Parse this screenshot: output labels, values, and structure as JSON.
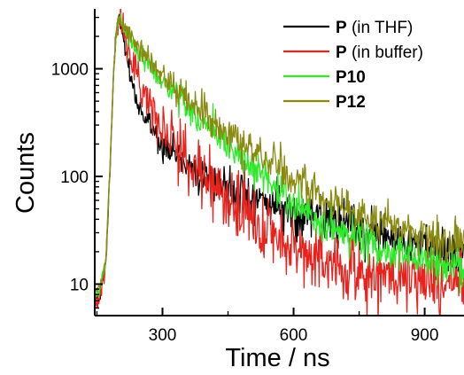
{
  "chart_data": {
    "type": "line",
    "xlabel": "Time / ns",
    "ylabel": "Counts",
    "xlim": [
      145,
      990
    ],
    "ylim": [
      5.1,
      3600
    ],
    "yscale": "log",
    "grid": false,
    "legend_position": "top-right",
    "x_ticks": [
      {
        "value": 300,
        "label": "300"
      },
      {
        "value": 600,
        "label": "600"
      },
      {
        "value": 900,
        "label": "900"
      }
    ],
    "y_ticks": [
      {
        "value": 10,
        "label": "10"
      },
      {
        "value": 100,
        "label": "100"
      },
      {
        "value": 1000,
        "label": "1000"
      }
    ],
    "series": [
      {
        "name_bold": "P",
        "name_rest": " (in THF)",
        "color": "#000000",
        "x": [
          155,
          170,
          180,
          188,
          195,
          200,
          205,
          212,
          220,
          230,
          240,
          250,
          260,
          275,
          290,
          310,
          330,
          350,
          375,
          400,
          425,
          450,
          475,
          500,
          525,
          550,
          575,
          600,
          625,
          650,
          675,
          700,
          725,
          750,
          775,
          800,
          825,
          850,
          875,
          900,
          925,
          950,
          975,
          990
        ],
        "y": [
          7,
          15,
          120,
          900,
          2300,
          2900,
          2700,
          1750,
          1050,
          700,
          520,
          420,
          350,
          280,
          230,
          190,
          160,
          140,
          120,
          100,
          89,
          80,
          73,
          66,
          60,
          55,
          51,
          47,
          44,
          41,
          38,
          36,
          34,
          32,
          30,
          28,
          26.5,
          25,
          23.5,
          22,
          21,
          20,
          19,
          18.5
        ],
        "noise": 0.1
      },
      {
        "name_bold": "P",
        "name_rest": " (in buffer)",
        "color": "#e8221c",
        "x": [
          155,
          170,
          180,
          188,
          195,
          200,
          205,
          212,
          220,
          230,
          240,
          250,
          260,
          275,
          290,
          310,
          330,
          350,
          375,
          400,
          425,
          450,
          475,
          500,
          525,
          550,
          575,
          600,
          625,
          650,
          675,
          700,
          725,
          750,
          775,
          800,
          825,
          850,
          875,
          900,
          925,
          950,
          975,
          990
        ],
        "y": [
          7,
          15,
          120,
          900,
          2300,
          2900,
          2750,
          2150,
          1600,
          1180,
          900,
          720,
          580,
          450,
          350,
          260,
          200,
          160,
          125,
          96,
          75,
          60,
          48,
          40,
          34,
          29,
          25,
          22,
          19.5,
          17.5,
          16,
          14.8,
          13.8,
          13,
          12.4,
          12,
          11.6,
          11.3,
          11,
          10.8,
          10.6,
          10.4,
          10.2,
          10
        ],
        "noise": 0.16
      },
      {
        "name_bold": "P10",
        "name_rest": "",
        "color": "#2eea2a",
        "x": [
          155,
          170,
          180,
          188,
          195,
          200,
          205,
          212,
          220,
          230,
          240,
          250,
          260,
          275,
          290,
          310,
          330,
          350,
          375,
          400,
          425,
          450,
          475,
          500,
          525,
          550,
          575,
          600,
          625,
          650,
          675,
          700,
          725,
          750,
          775,
          800,
          825,
          850,
          875,
          900,
          925,
          950,
          975,
          990
        ],
        "y": [
          8,
          15,
          120,
          900,
          2300,
          2900,
          2800,
          2500,
          2150,
          1830,
          1570,
          1360,
          1200,
          1010,
          860,
          700,
          580,
          480,
          380,
          305,
          245,
          195,
          158,
          127,
          103,
          83,
          68,
          56,
          47,
          40,
          35,
          31,
          28,
          25.5,
          23.5,
          21.8,
          20.3,
          19,
          18,
          17,
          16.2,
          15.5,
          14.9,
          14.5
        ],
        "noise": 0.09
      },
      {
        "name_bold": "P12",
        "name_rest": "",
        "color": "#8a8a10",
        "x": [
          155,
          170,
          180,
          188,
          195,
          200,
          205,
          212,
          220,
          230,
          240,
          250,
          260,
          275,
          290,
          310,
          330,
          350,
          375,
          400,
          425,
          450,
          475,
          500,
          525,
          550,
          575,
          600,
          625,
          650,
          675,
          700,
          725,
          750,
          775,
          800,
          825,
          850,
          875,
          900,
          925,
          950,
          975,
          990
        ],
        "y": [
          9,
          16,
          125,
          920,
          2350,
          2950,
          2850,
          2560,
          2220,
          1900,
          1650,
          1450,
          1290,
          1100,
          950,
          790,
          660,
          560,
          450,
          370,
          305,
          255,
          213,
          180,
          152,
          129,
          110,
          95,
          82,
          72,
          63,
          56,
          50,
          45,
          41,
          37.5,
          34.5,
          32,
          30,
          28,
          26.5,
          25,
          24,
          23.5
        ],
        "noise": 0.09
      }
    ]
  }
}
